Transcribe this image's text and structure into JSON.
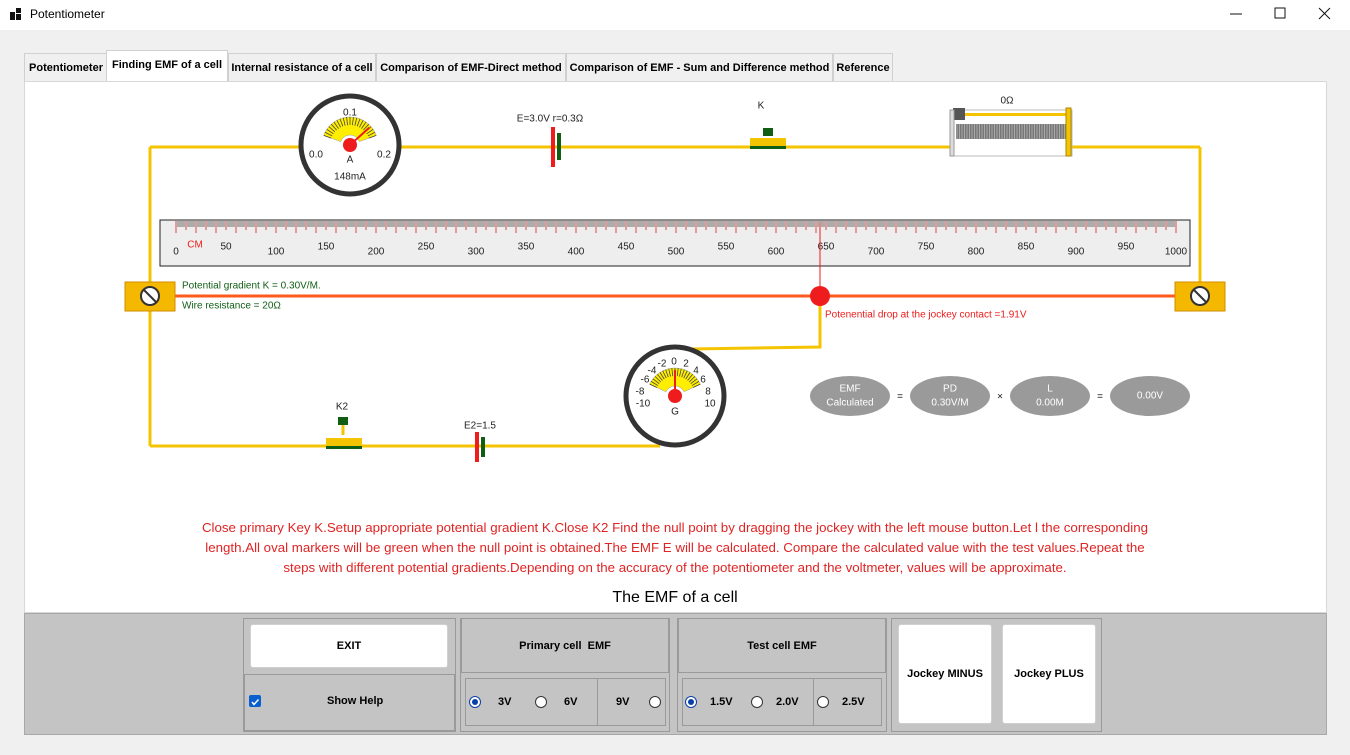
{
  "window": {
    "title": "Potentiometer"
  },
  "tabs": [
    "Potentiometer",
    "Finding EMF of a cell",
    "Internal resistance of a cell",
    "Comparison of EMF-Direct method",
    "Comparison of EMF - Sum and Difference method",
    "Reference"
  ],
  "circuit": {
    "ammeter": {
      "top": "0.1",
      "left": "0.0",
      "right": "0.2",
      "symbol": "A",
      "reading": "148mA"
    },
    "primary_cell": "E=3.0V r=0.3Ω",
    "key": "K",
    "rheostat": "0Ω",
    "ruler": {
      "unit": "CM",
      "labels": [
        0,
        50,
        100,
        150,
        200,
        250,
        300,
        350,
        400,
        450,
        500,
        550,
        600,
        650,
        700,
        750,
        800,
        850,
        900,
        950,
        1000
      ]
    },
    "gradient": "Potential gradient K = 0.30V/M.",
    "wire_resistance": "Wire resistance = 20Ω",
    "jockey_drop": "Potenential drop at the jockey contact =1.91V",
    "galvanometer": {
      "scale": [
        "-10",
        "-8",
        "-6",
        "-4",
        "-2",
        "0",
        "2",
        "4",
        "6",
        "8",
        "10"
      ],
      "symbol": "G"
    },
    "key2": "K2",
    "test_cell": "E2=1.5",
    "formula": {
      "emf": [
        "EMF",
        "Calculated"
      ],
      "eq1": "=",
      "pd": [
        "PD",
        "0.30V/M"
      ],
      "times": "×",
      "length": [
        "L",
        "0.00M"
      ],
      "eq2": "=",
      "result": "0.00V"
    }
  },
  "help_text": "Close primary Key K.Setup appropriate potential gradient K.Close K2 Find the null point by dragging the jockey with the left mouse button.Let l the corresponding length.All oval markers will be green when the null point is obtained.The EMF E will be calculated. Compare the calculated value with the test values.Repeat the steps with different potential gradients.Depending on the accuracy of the potentiometer and the voltmeter, values will be approximate.",
  "caption": "The EMF of a cell",
  "controls": {
    "exit": "EXIT",
    "show_help": "Show Help",
    "primary": {
      "title": "Primary cell  EMF",
      "options": [
        "3V",
        "6V",
        "9V"
      ]
    },
    "test": {
      "title": "Test cell EMF",
      "options": [
        "1.5V",
        "2.0V",
        "2.5V"
      ]
    },
    "jockey_minus": "Jockey MINUS",
    "jockey_plus": "Jockey PLUS"
  }
}
